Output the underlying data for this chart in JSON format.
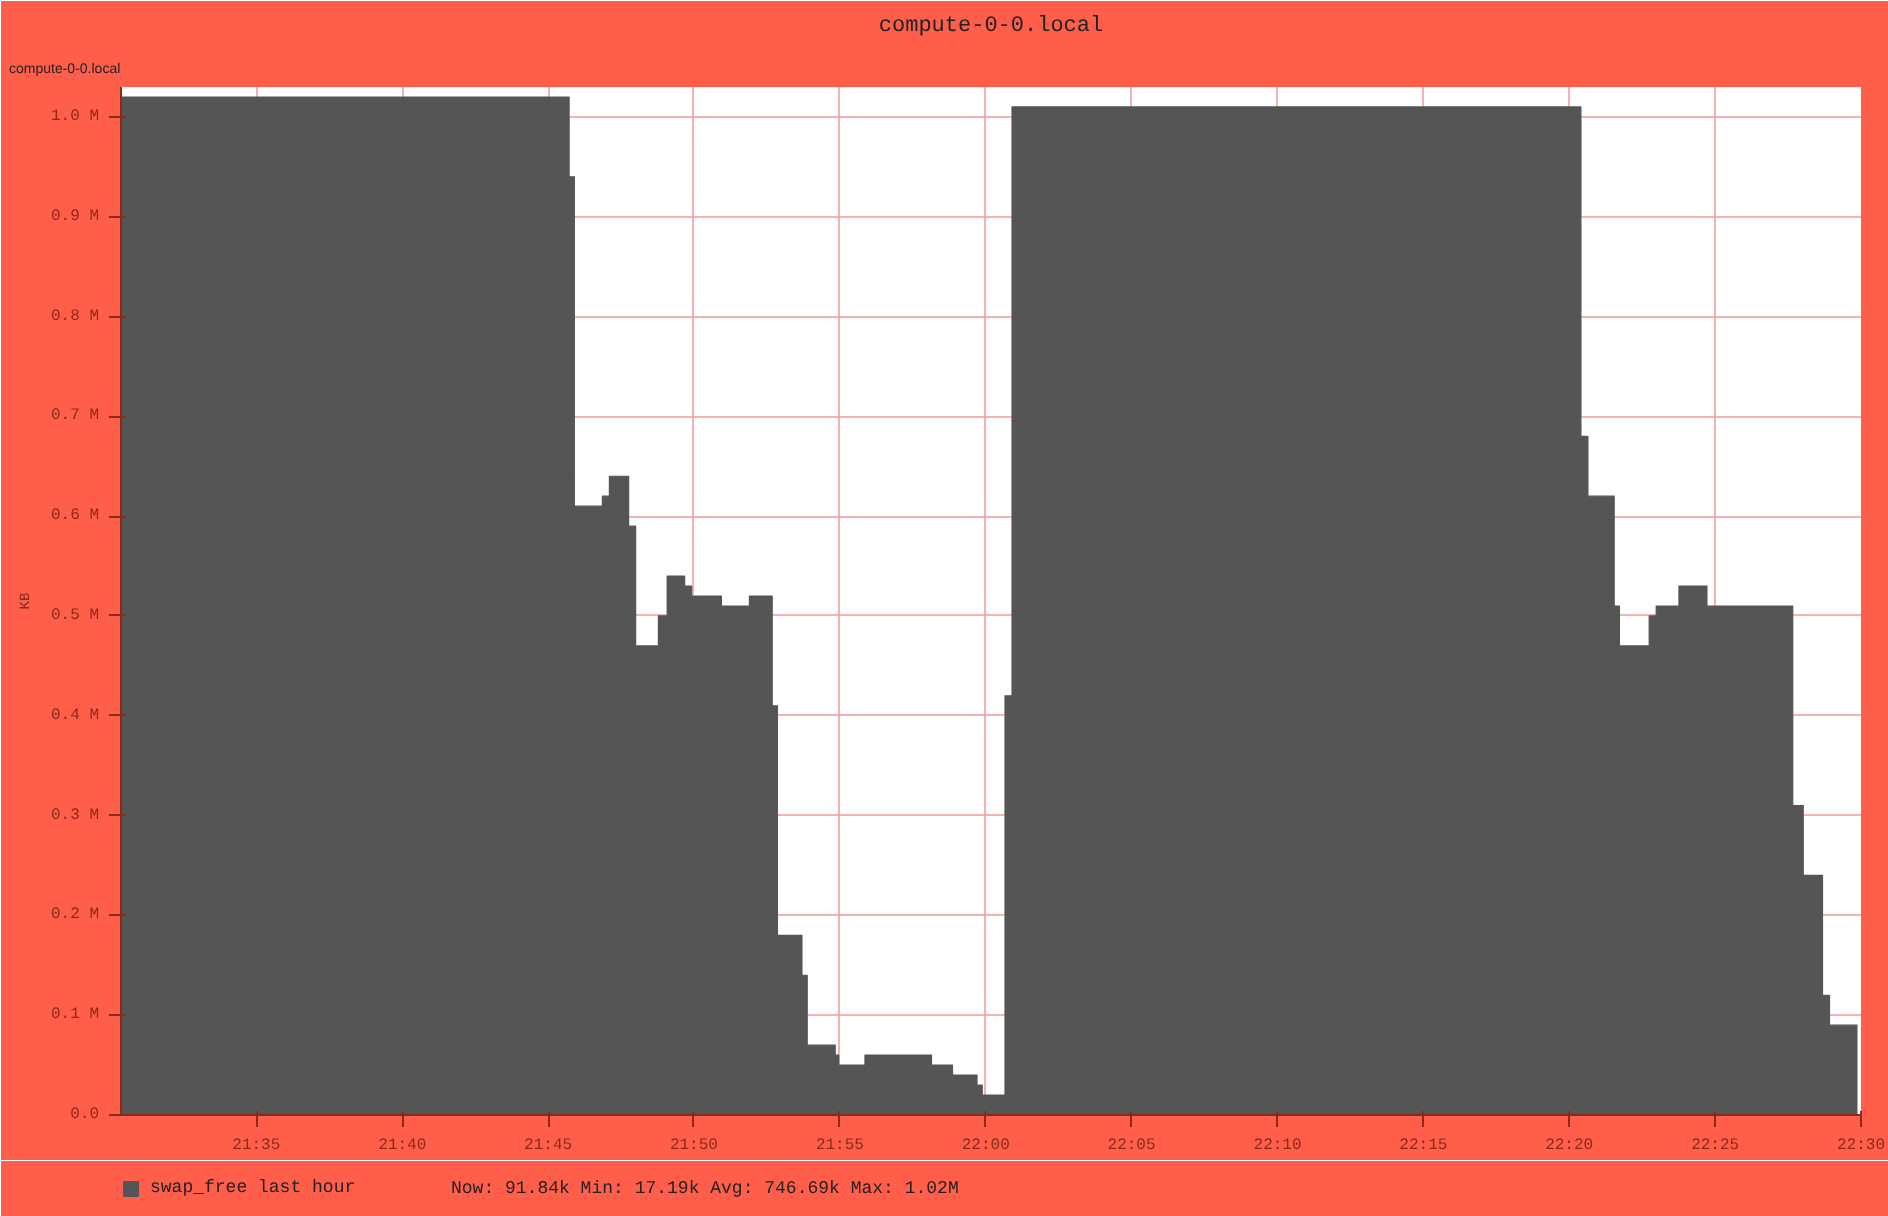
{
  "chart_data": {
    "type": "area",
    "title": "compute-0-0.local",
    "ylabel": "KB",
    "annotations": [
      "compute-0-0.local",
      "Now:  91.84k  Min:  17.19k  Avg: 746.69k  Max:  1.02M"
    ],
    "x": [
      21.506,
      21.762,
      21.762,
      21.765,
      21.765,
      21.781,
      21.781,
      21.785,
      21.785,
      21.796,
      21.796,
      21.8,
      21.8,
      21.813,
      21.813,
      21.818,
      21.818,
      21.828,
      21.828,
      21.832,
      21.832,
      21.849,
      21.849,
      21.865,
      21.865,
      21.878,
      21.878,
      21.881,
      21.881,
      21.895,
      21.895,
      21.898,
      21.898,
      21.914,
      21.914,
      21.916,
      21.916,
      21.931,
      21.931,
      21.943,
      21.943,
      21.969,
      21.969,
      21.981,
      21.981,
      21.995,
      21.995,
      21.998,
      21.998,
      22.011,
      22.011,
      22.015,
      22.015,
      22.34,
      22.34,
      22.344,
      22.344,
      22.359,
      22.359,
      22.362,
      22.362,
      22.379,
      22.379,
      22.383,
      22.383,
      22.396,
      22.396,
      22.412,
      22.412,
      22.426,
      22.426,
      22.444,
      22.444,
      22.461,
      22.461,
      22.467,
      22.467,
      22.478,
      22.478,
      22.482,
      22.482,
      22.495,
      22.495,
      22.498
    ],
    "series": [
      {
        "name": "swap_free last hour",
        "color": "#555555",
        "values": [
          1.02,
          1.02,
          0.94,
          0.94,
          0.61,
          0.61,
          0.62,
          0.62,
          0.64,
          0.64,
          0.59,
          0.59,
          0.47,
          0.47,
          0.5,
          0.5,
          0.54,
          0.54,
          0.53,
          0.53,
          0.52,
          0.52,
          0.51,
          0.51,
          0.52,
          0.52,
          0.41,
          0.41,
          0.18,
          0.18,
          0.14,
          0.14,
          0.07,
          0.07,
          0.06,
          0.06,
          0.05,
          0.05,
          0.06,
          0.06,
          0.06,
          0.06,
          0.05,
          0.05,
          0.04,
          0.04,
          0.03,
          0.03,
          0.02,
          0.02,
          0.42,
          0.42,
          1.01,
          1.01,
          0.68,
          0.68,
          0.62,
          0.62,
          0.51,
          0.51,
          0.47,
          0.47,
          0.5,
          0.5,
          0.51,
          0.51,
          0.53,
          0.53,
          0.51,
          0.51,
          0.51,
          0.51,
          0.51,
          0.51,
          0.31,
          0.31,
          0.24,
          0.24,
          0.12,
          0.12,
          0.09,
          0.09,
          0.09,
          0.09
        ]
      }
    ],
    "xlim": [
      21.506,
      22.5
    ],
    "ylim": [
      0,
      1.03
    ],
    "xticks": [
      {
        "value": 21.5833,
        "label": "21:35"
      },
      {
        "value": 21.6667,
        "label": "21:40"
      },
      {
        "value": 21.75,
        "label": "21:45"
      },
      {
        "value": 21.8333,
        "label": "21:50"
      },
      {
        "value": 21.9167,
        "label": "21:55"
      },
      {
        "value": 22,
        "label": "22:00"
      },
      {
        "value": 22.0833,
        "label": "22:05"
      },
      {
        "value": 22.1667,
        "label": "22:10"
      },
      {
        "value": 22.25,
        "label": "22:15"
      },
      {
        "value": 22.3333,
        "label": "22:20"
      },
      {
        "value": 22.4167,
        "label": "22:25"
      },
      {
        "value": 22.5,
        "label": "22:30"
      }
    ],
    "yticks": [
      {
        "value": 0,
        "label": "0.0"
      },
      {
        "value": 0.1,
        "label": "0.1 M"
      },
      {
        "value": 0.2,
        "label": "0.2 M"
      },
      {
        "value": 0.3,
        "label": "0.3 M"
      },
      {
        "value": 0.4,
        "label": "0.4 M"
      },
      {
        "value": 0.5,
        "label": "0.5 M"
      },
      {
        "value": 0.6,
        "label": "0.6 M"
      },
      {
        "value": 0.7,
        "label": "0.7 M"
      },
      {
        "value": 0.8,
        "label": "0.8 M"
      },
      {
        "value": 0.9,
        "label": "0.9 M"
      },
      {
        "value": 1.0,
        "label": "1.0 M"
      }
    ],
    "grid": true,
    "legend": "bottom left"
  }
}
